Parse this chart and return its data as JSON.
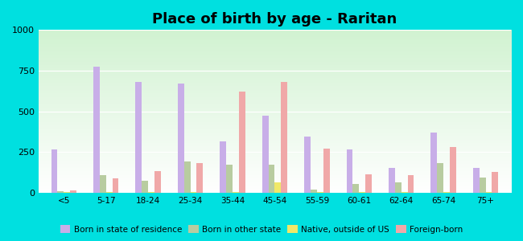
{
  "title": "Place of birth by age - Raritan",
  "categories": [
    "<5",
    "5-17",
    "18-24",
    "25-34",
    "35-44",
    "45-54",
    "55-59",
    "60-61",
    "62-64",
    "65-74",
    "75+"
  ],
  "series": {
    "Born in state of residence": [
      265,
      775,
      680,
      670,
      315,
      475,
      345,
      265,
      155,
      370,
      155
    ],
    "Born in other state": [
      10,
      110,
      75,
      195,
      175,
      175,
      20,
      55,
      65,
      185,
      95
    ],
    "Native, outside of US": [
      5,
      5,
      5,
      5,
      5,
      65,
      5,
      5,
      5,
      5,
      5
    ],
    "Foreign-born": [
      15,
      90,
      135,
      185,
      620,
      680,
      270,
      115,
      110,
      280,
      130
    ]
  },
  "colors": {
    "Born in state of residence": "#c8aee8",
    "Born in other state": "#b8cca0",
    "Native, outside of US": "#f0e868",
    "Foreign-born": "#f0a8a8"
  },
  "ylim": [
    0,
    1000
  ],
  "yticks": [
    0,
    250,
    500,
    750,
    1000
  ],
  "outer_background": "#00e0e0",
  "bar_width": 0.15,
  "title_fontsize": 13,
  "legend_fontsize": 7.5
}
